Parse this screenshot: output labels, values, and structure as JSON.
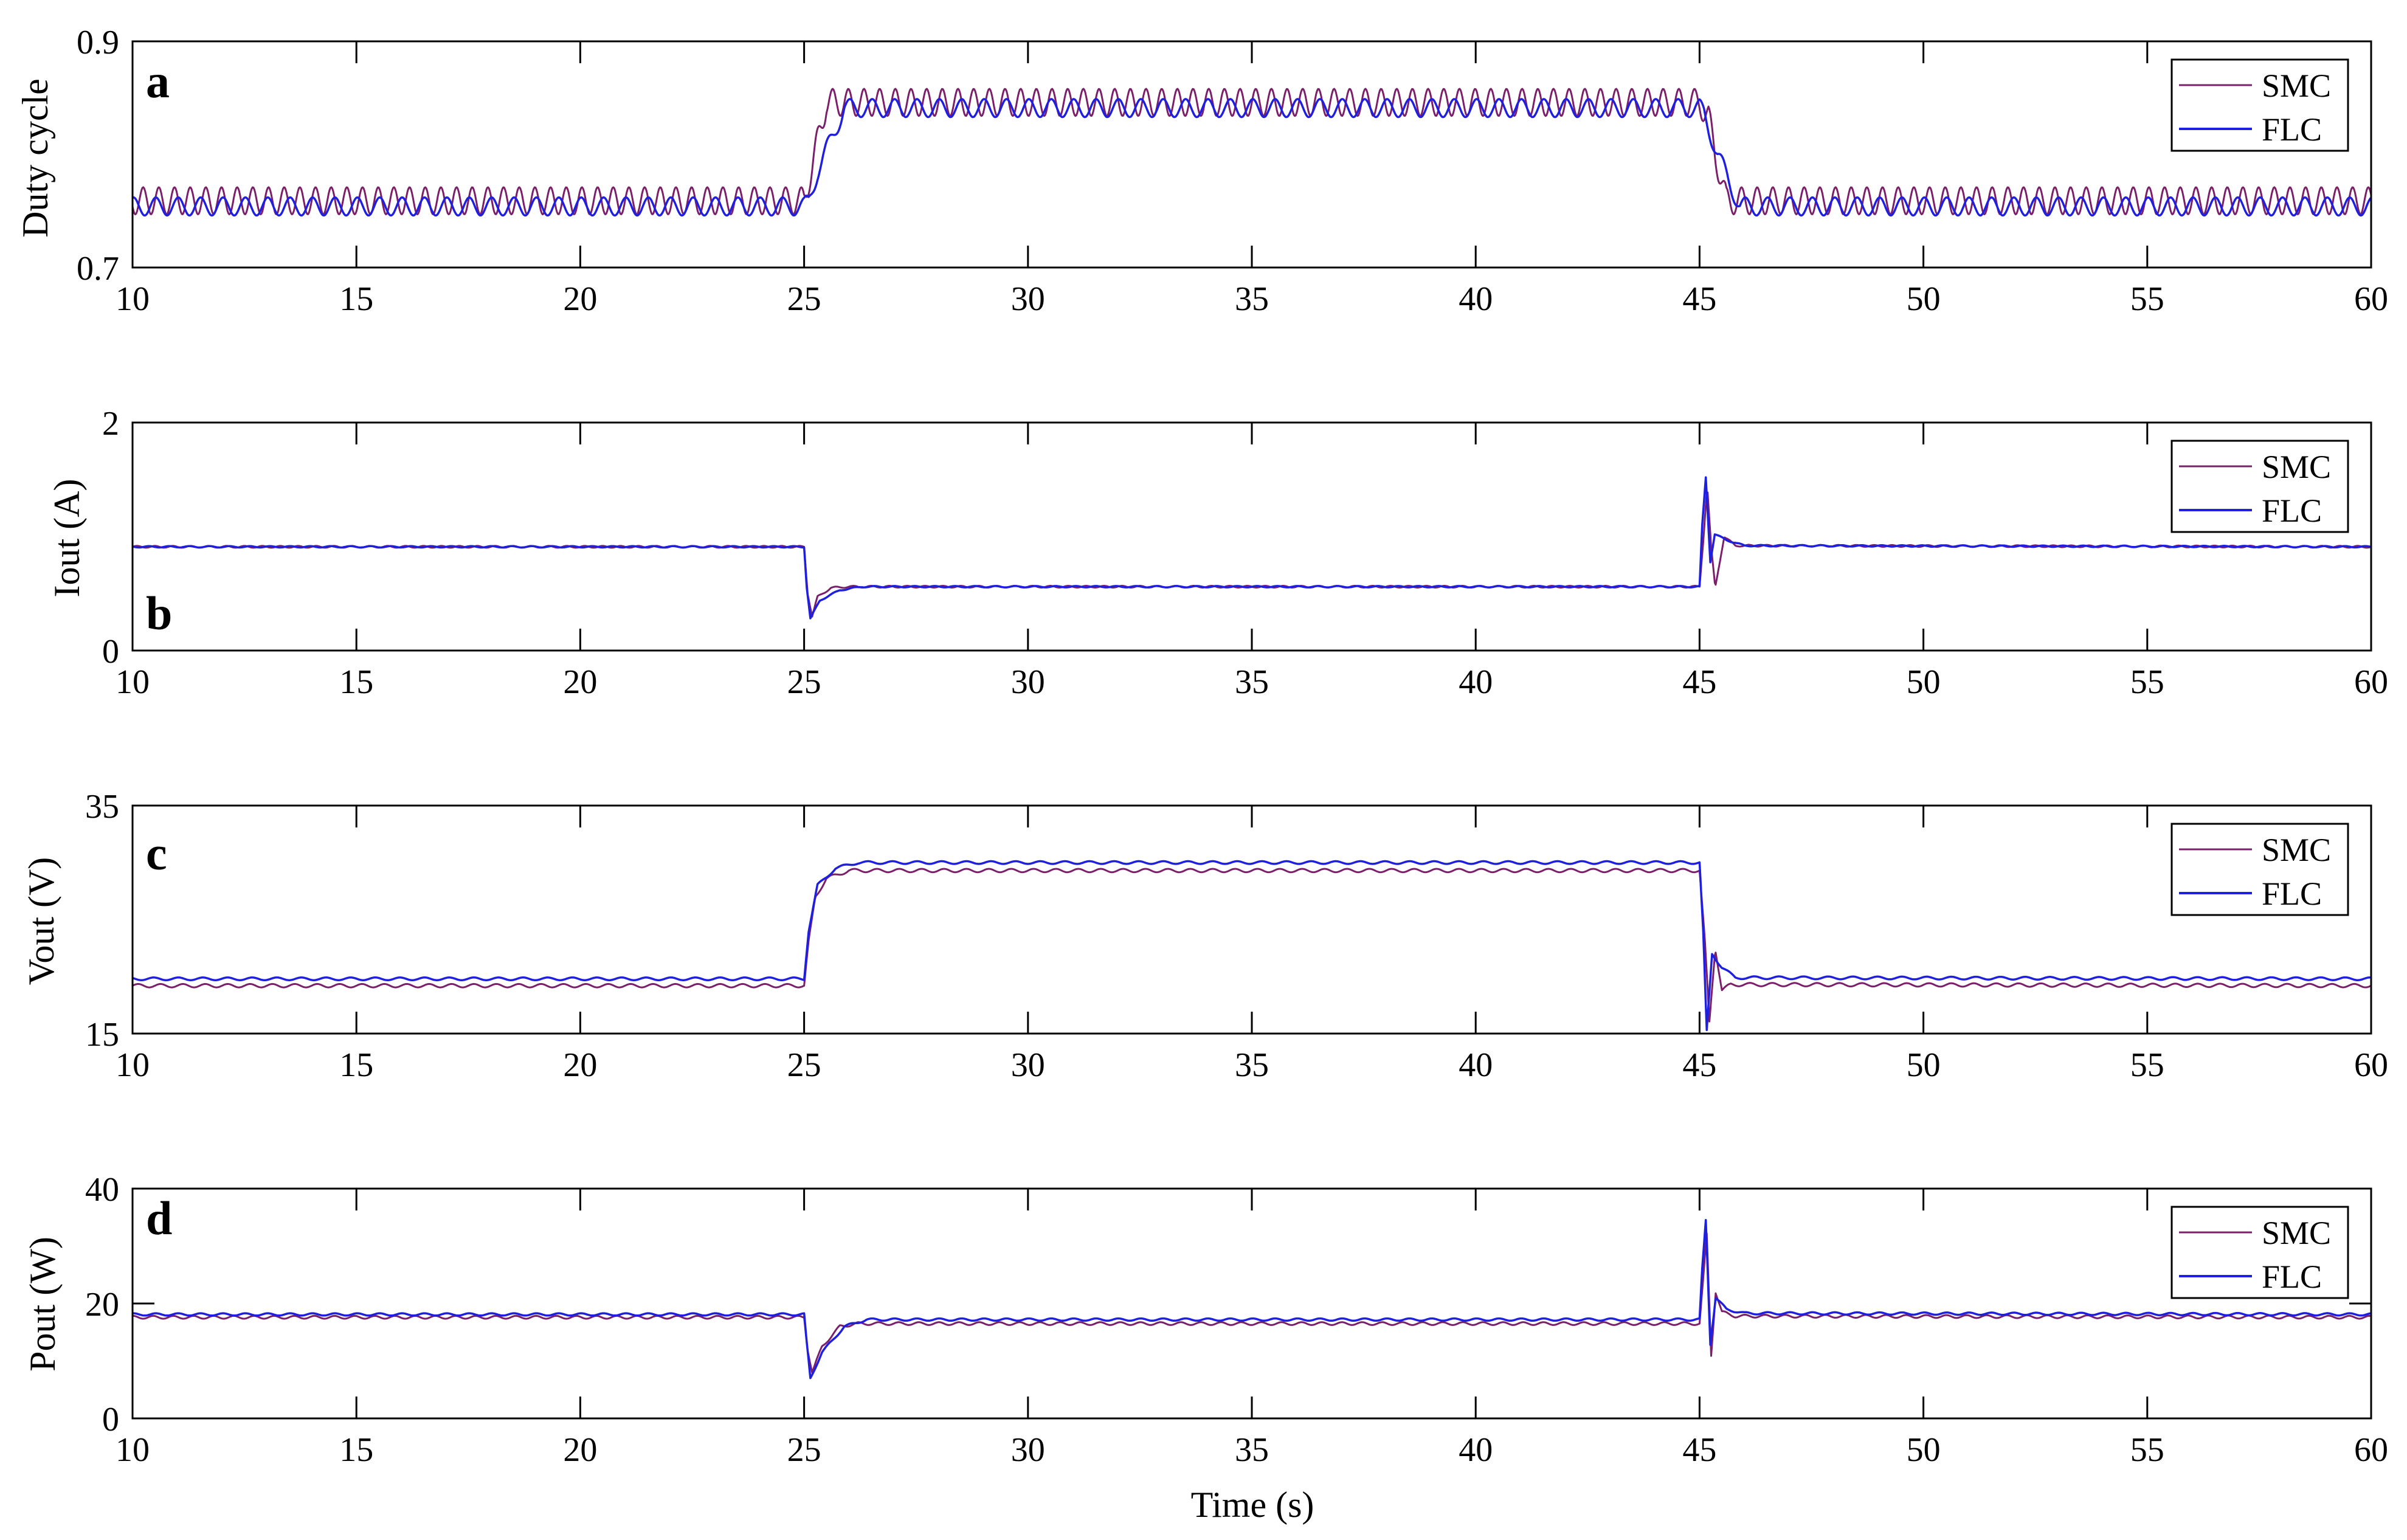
{
  "chart_data": [
    {
      "panel": "a",
      "type": "line",
      "ylabel": "Duty cycle",
      "xlabel": "",
      "xlim": [
        10,
        60
      ],
      "ylim": [
        0.7,
        0.9
      ],
      "xticks": [
        "10",
        "15",
        "20",
        "25",
        "30",
        "35",
        "40",
        "45",
        "50",
        "55",
        "60"
      ],
      "yticks": [
        "0.7",
        "0.9"
      ],
      "legend": {
        "position": "top-right",
        "entries": [
          "SMC",
          "FLC"
        ]
      },
      "grid": false,
      "series": [
        {
          "name": "SMC",
          "color": "#7b1f6a",
          "ripple": 0.012,
          "period": 0.35,
          "x": [
            10,
            25.0,
            25.5,
            45.0,
            45.2,
            45.35,
            45.6,
            60
          ],
          "y": [
            0.759,
            0.759,
            0.846,
            0.846,
            0.833,
            0.8,
            0.759,
            0.759
          ]
        },
        {
          "name": "FLC",
          "color": "#1f1fe0",
          "ripple": 0.008,
          "period": 0.5,
          "x": [
            10,
            25.0,
            25.1,
            25.3,
            25.9,
            45.0,
            45.1,
            45.4,
            45.9,
            60
          ],
          "y": [
            0.754,
            0.754,
            0.758,
            0.785,
            0.841,
            0.841,
            0.836,
            0.8,
            0.754,
            0.754
          ]
        }
      ]
    },
    {
      "panel": "b",
      "type": "line",
      "ylabel": "Iout (A)",
      "xlabel": "",
      "xlim": [
        10,
        60
      ],
      "ylim": [
        0,
        2
      ],
      "xticks": [
        "10",
        "15",
        "20",
        "25",
        "30",
        "35",
        "40",
        "45",
        "50",
        "55",
        "60"
      ],
      "yticks": [
        "0",
        "2"
      ],
      "legend": {
        "position": "top-right",
        "entries": [
          "SMC",
          "FLC"
        ]
      },
      "grid": false,
      "series": [
        {
          "name": "SMC",
          "color": "#7b1f6a",
          "ripple": 0.008,
          "period": 0.4,
          "x": [
            10,
            25.0,
            25.08,
            25.18,
            25.3,
            25.6,
            26.0,
            45.0,
            45.08,
            45.17,
            45.26,
            45.35,
            45.55,
            45.8,
            60
          ],
          "y": [
            0.91,
            0.91,
            0.5,
            0.3,
            0.47,
            0.55,
            0.56,
            0.56,
            0.95,
            1.45,
            0.9,
            0.55,
            1.0,
            0.92,
            0.91
          ]
        },
        {
          "name": "FLC",
          "color": "#1f1fe0",
          "ripple": 0.006,
          "period": 0.45,
          "x": [
            10,
            25.0,
            25.06,
            25.14,
            25.35,
            25.8,
            26.3,
            45.0,
            45.06,
            45.14,
            45.24,
            45.34,
            45.6,
            46.0,
            60
          ],
          "y": [
            0.91,
            0.91,
            0.55,
            0.28,
            0.44,
            0.53,
            0.56,
            0.56,
            1.1,
            1.52,
            0.78,
            1.02,
            0.97,
            0.92,
            0.91
          ]
        }
      ]
    },
    {
      "panel": "c",
      "type": "line",
      "ylabel": "Vout (V)",
      "xlabel": "",
      "xlim": [
        10,
        60
      ],
      "ylim": [
        15,
        35
      ],
      "xticks": [
        "10",
        "15",
        "20",
        "25",
        "30",
        "35",
        "40",
        "45",
        "50",
        "55",
        "60"
      ],
      "yticks": [
        "15",
        "35"
      ],
      "legend": {
        "position": "top-right",
        "entries": [
          "SMC",
          "FLC"
        ]
      },
      "grid": false,
      "series": [
        {
          "name": "SMC",
          "color": "#7b1f6a",
          "ripple": 0.15,
          "period": 0.5,
          "x": [
            10,
            25.0,
            25.1,
            25.25,
            25.5,
            26.0,
            45.0,
            45.12,
            45.22,
            45.35,
            45.5,
            45.7,
            60
          ],
          "y": [
            19.2,
            19.2,
            23.0,
            27.0,
            28.6,
            29.3,
            29.3,
            23.0,
            16.0,
            22.5,
            18.8,
            19.3,
            19.2
          ]
        },
        {
          "name": "FLC",
          "color": "#1f1fe0",
          "ripple": 0.12,
          "period": 0.55,
          "x": [
            10,
            25.0,
            25.1,
            25.3,
            25.7,
            26.2,
            45.0,
            45.08,
            45.16,
            45.28,
            45.5,
            45.8,
            60
          ],
          "y": [
            19.8,
            19.8,
            24.0,
            28.0,
            29.5,
            30.0,
            30.0,
            24.0,
            15.2,
            22.0,
            20.8,
            19.9,
            19.8
          ]
        }
      ]
    },
    {
      "panel": "d",
      "type": "line",
      "ylabel": "Pout (W)",
      "xlabel": "Time (s)",
      "xlim": [
        10,
        60
      ],
      "ylim": [
        0,
        40
      ],
      "xticks": [
        "10",
        "15",
        "20",
        "25",
        "30",
        "35",
        "40",
        "45",
        "50",
        "55",
        "60"
      ],
      "yticks": [
        "0",
        "20",
        "40"
      ],
      "legend": {
        "position": "top-right",
        "entries": [
          "SMC",
          "FLC"
        ]
      },
      "grid": false,
      "series": [
        {
          "name": "SMC",
          "color": "#7b1f6a",
          "ripple": 0.25,
          "period": 0.45,
          "x": [
            10,
            25.0,
            25.08,
            25.18,
            25.4,
            25.8,
            26.2,
            45.0,
            45.08,
            45.16,
            45.26,
            45.36,
            45.5,
            45.8,
            60
          ],
          "y": [
            17.6,
            17.6,
            12.0,
            8.0,
            12.5,
            16.0,
            16.5,
            16.5,
            24.0,
            32.0,
            11.0,
            22.0,
            18.5,
            17.8,
            17.6
          ]
        },
        {
          "name": "FLC",
          "color": "#1f1fe0",
          "ripple": 0.2,
          "period": 0.5,
          "x": [
            10,
            25.0,
            25.06,
            25.14,
            25.4,
            25.9,
            26.4,
            45.0,
            45.06,
            45.14,
            45.24,
            45.36,
            45.6,
            46.0,
            60
          ],
          "y": [
            18.1,
            18.1,
            13.0,
            7.0,
            11.5,
            16.0,
            17.2,
            17.2,
            26.0,
            34.5,
            13.0,
            21.0,
            19.0,
            18.3,
            18.1
          ]
        }
      ]
    }
  ]
}
